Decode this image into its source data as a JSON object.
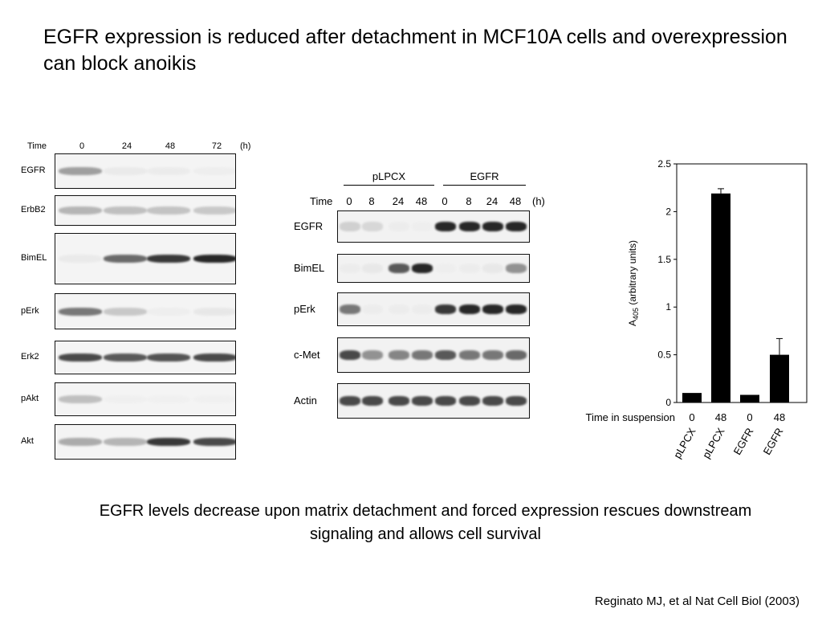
{
  "slide": {
    "title": "EGFR expression is reduced after detachment in MCF10A cells and overexpression can block anoikis",
    "caption": "EGFR levels decrease upon matrix detachment and forced expression rescues downstream signaling and allows cell survival",
    "citation": "Reginato MJ, et al Nat Cell Biol (2003)"
  },
  "blot_a": {
    "time_label": "Time",
    "unit_label": "(h)",
    "timepoints": [
      "0",
      "24",
      "48",
      "72"
    ],
    "rows": [
      {
        "label": "EGFR",
        "intensity": [
          0.55,
          0.1,
          0.08,
          0.05
        ]
      },
      {
        "label": "ErbB2",
        "intensity": [
          0.45,
          0.4,
          0.38,
          0.35
        ]
      },
      {
        "label": "BimEL",
        "intensity": [
          0.1,
          0.75,
          0.9,
          0.95
        ]
      },
      {
        "label": "pErk",
        "intensity": [
          0.7,
          0.35,
          0.05,
          0.12
        ]
      },
      {
        "label": "Erk2",
        "intensity": [
          0.85,
          0.8,
          0.82,
          0.85
        ]
      },
      {
        "label": "pAkt",
        "intensity": [
          0.4,
          0.03,
          0.02,
          0.02
        ]
      },
      {
        "label": "Akt",
        "intensity": [
          0.5,
          0.45,
          0.9,
          0.85
        ]
      }
    ]
  },
  "blot_b": {
    "group_labels": [
      "pLPCX",
      "EGFR"
    ],
    "time_label": "Time",
    "unit_label": "(h)",
    "timepoints": [
      "0",
      "8",
      "24",
      "48",
      "0",
      "8",
      "24",
      "48"
    ],
    "rows": [
      {
        "label": "EGFR",
        "intensity": [
          0.3,
          0.25,
          0.05,
          0.03,
          0.95,
          0.95,
          0.95,
          0.95
        ]
      },
      {
        "label": "BimEL",
        "intensity": [
          0.05,
          0.1,
          0.8,
          0.95,
          0.03,
          0.05,
          0.1,
          0.6
        ]
      },
      {
        "label": "pErk",
        "intensity": [
          0.7,
          0.05,
          0.05,
          0.05,
          0.9,
          0.95,
          0.95,
          0.95
        ]
      },
      {
        "label": "c-Met",
        "intensity": [
          0.85,
          0.6,
          0.65,
          0.7,
          0.8,
          0.7,
          0.7,
          0.75
        ]
      },
      {
        "label": "Actin",
        "intensity": [
          0.85,
          0.85,
          0.85,
          0.85,
          0.85,
          0.85,
          0.85,
          0.85
        ]
      }
    ]
  },
  "chart_data": {
    "type": "bar",
    "ylabel": "A405 (arbitrary units)",
    "ylim": [
      0,
      2.5
    ],
    "yticks": [
      "0",
      "0.5",
      "1",
      "1.5",
      "2",
      "2.5"
    ],
    "xlabel": "Time in suspension",
    "categories": [
      "0",
      "48",
      "0",
      "48"
    ],
    "group_labels": [
      "pLPCX",
      "pLPCX",
      "EGFR",
      "EGFR"
    ],
    "values": [
      0.1,
      2.19,
      0.08,
      0.5
    ],
    "errors": [
      0.0,
      0.05,
      0.0,
      0.17
    ],
    "bar_color": "#000000",
    "grid": false
  }
}
